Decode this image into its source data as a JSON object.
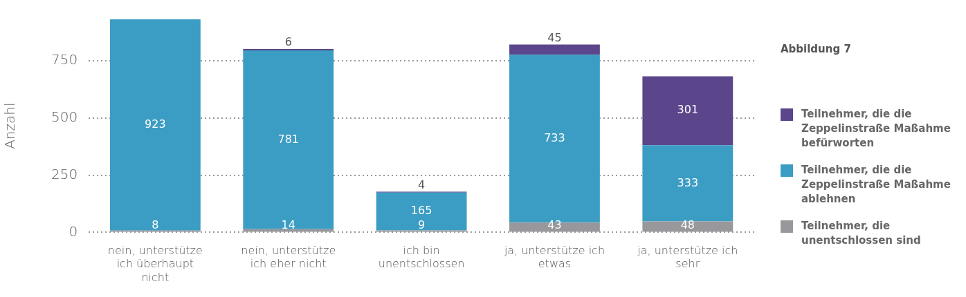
{
  "chart_data": {
    "type": "bar",
    "title": "Abbildung 7",
    "ylabel": "Anzahl",
    "stacked": true,
    "categories": [
      "nein, unterstütze ich überhaupt nicht",
      "nein, unterstütze ich eher nicht",
      "ich bin unentschlossen",
      "ja, unterstütze ich etwas",
      "ja, unterstütze ich sehr"
    ],
    "series": [
      {
        "name": "Teilnehmer, die unentschlossen sind",
        "color": "#98989c",
        "values": [
          8,
          14,
          9,
          43,
          48
        ]
      },
      {
        "name": "Teilnehmer, die die Zeppelinstraße Maßahme ablehnen",
        "color": "#3b9dc3",
        "values": [
          923,
          781,
          165,
          733,
          333
        ]
      },
      {
        "name": "Teilnehmer, die die Zeppelinstraße Maßahme befürworten",
        "color": "#5b468c",
        "values": [
          null,
          6,
          4,
          45,
          301
        ]
      }
    ],
    "ylim": [
      0,
      931
    ],
    "yticks": [
      0,
      250,
      500,
      750
    ],
    "grid": "y",
    "line_style": "dotted",
    "legend": "right",
    "data_labels": true
  }
}
